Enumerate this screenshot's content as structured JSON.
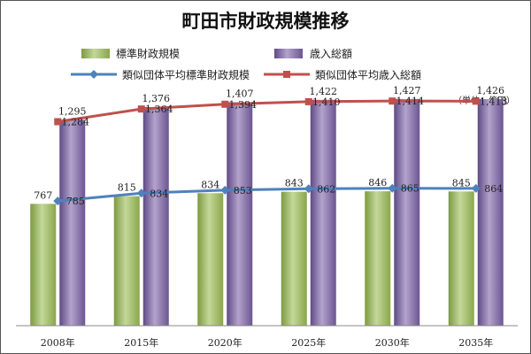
{
  "chart_data": {
    "type": "bar",
    "title": "町田市財政規模推移",
    "unit_note": "（単位：億円）",
    "categories": [
      "2008年",
      "2015年",
      "2020年",
      "2025年",
      "2030年",
      "2035年"
    ],
    "ylim": [
      0,
      1700
    ],
    "grid": false,
    "legend_position": "top",
    "bar_series": [
      {
        "name": "標準財政規模",
        "values": [
          767,
          815,
          834,
          843,
          846,
          845
        ],
        "color": "#9bbb59"
      },
      {
        "name": "歳入総額",
        "values": [
          1295,
          1376,
          1407,
          1422,
          1427,
          1426
        ],
        "color": "#8064a2"
      }
    ],
    "line_series": [
      {
        "name": "類似団体平均標準財政規模",
        "values": [
          785,
          834,
          853,
          862,
          865,
          864
        ],
        "color": "#4f81bd"
      },
      {
        "name": "類似団体平均歳入総額",
        "values": [
          1284,
          1364,
          1394,
          1410,
          1414,
          1413
        ],
        "color": "#c0504d"
      }
    ]
  }
}
